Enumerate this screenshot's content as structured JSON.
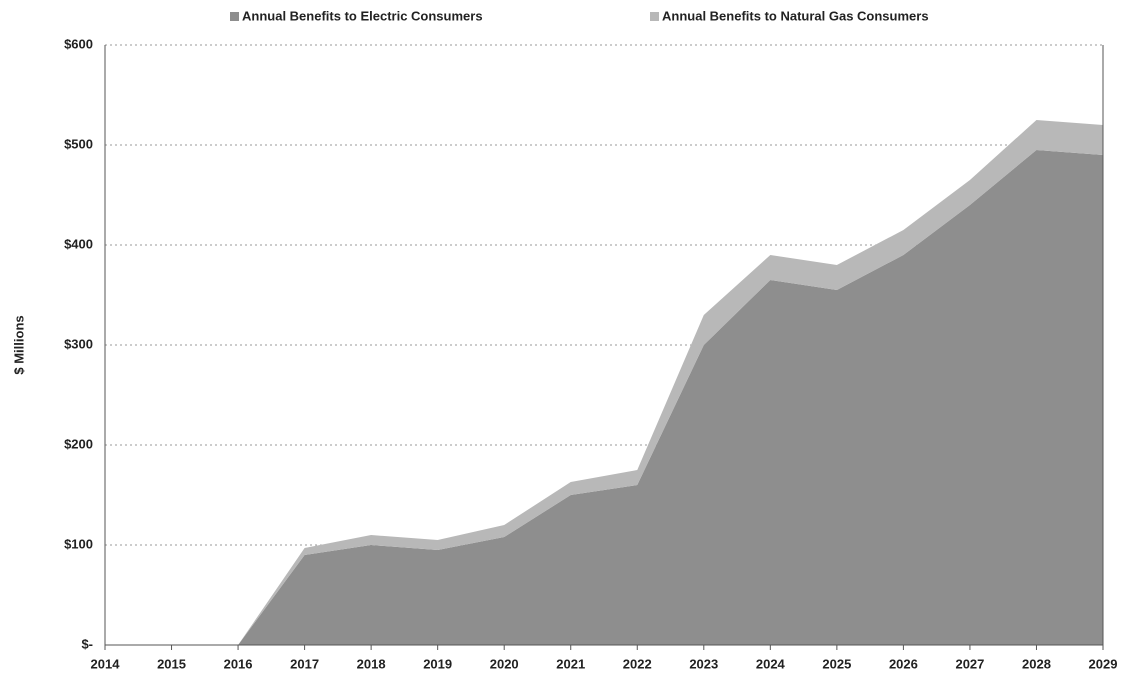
{
  "chart_data": {
    "type": "stacked_area",
    "y_label": "$ Millions",
    "categories": [
      "2014",
      "2015",
      "2016",
      "2017",
      "2018",
      "2019",
      "2020",
      "2021",
      "2022",
      "2023",
      "2024",
      "2025",
      "2026",
      "2027",
      "2028",
      "2029"
    ],
    "series": [
      {
        "name": "Annual Benefits to Electric Consumers",
        "color": "#8e8e8e",
        "values": [
          0,
          0,
          0,
          90,
          100,
          95,
          108,
          150,
          160,
          300,
          365,
          355,
          390,
          440,
          495,
          490
        ]
      },
      {
        "name": "Annual Benefits to Natural Gas Consumers",
        "color": "#b8b8b8",
        "values": [
          0,
          0,
          0,
          7,
          10,
          10,
          12,
          13,
          15,
          30,
          25,
          25,
          25,
          25,
          30,
          30
        ]
      }
    ],
    "ylim": [
      0,
      600
    ],
    "yticks": [
      {
        "value": 0,
        "label": "$-"
      },
      {
        "value": 100,
        "label": "$100"
      },
      {
        "value": 200,
        "label": "$200"
      },
      {
        "value": 300,
        "label": "$300"
      },
      {
        "value": 400,
        "label": "$400"
      },
      {
        "value": 500,
        "label": "$500"
      },
      {
        "value": 600,
        "label": "$600"
      }
    ],
    "grid": true,
    "legend": "top"
  }
}
